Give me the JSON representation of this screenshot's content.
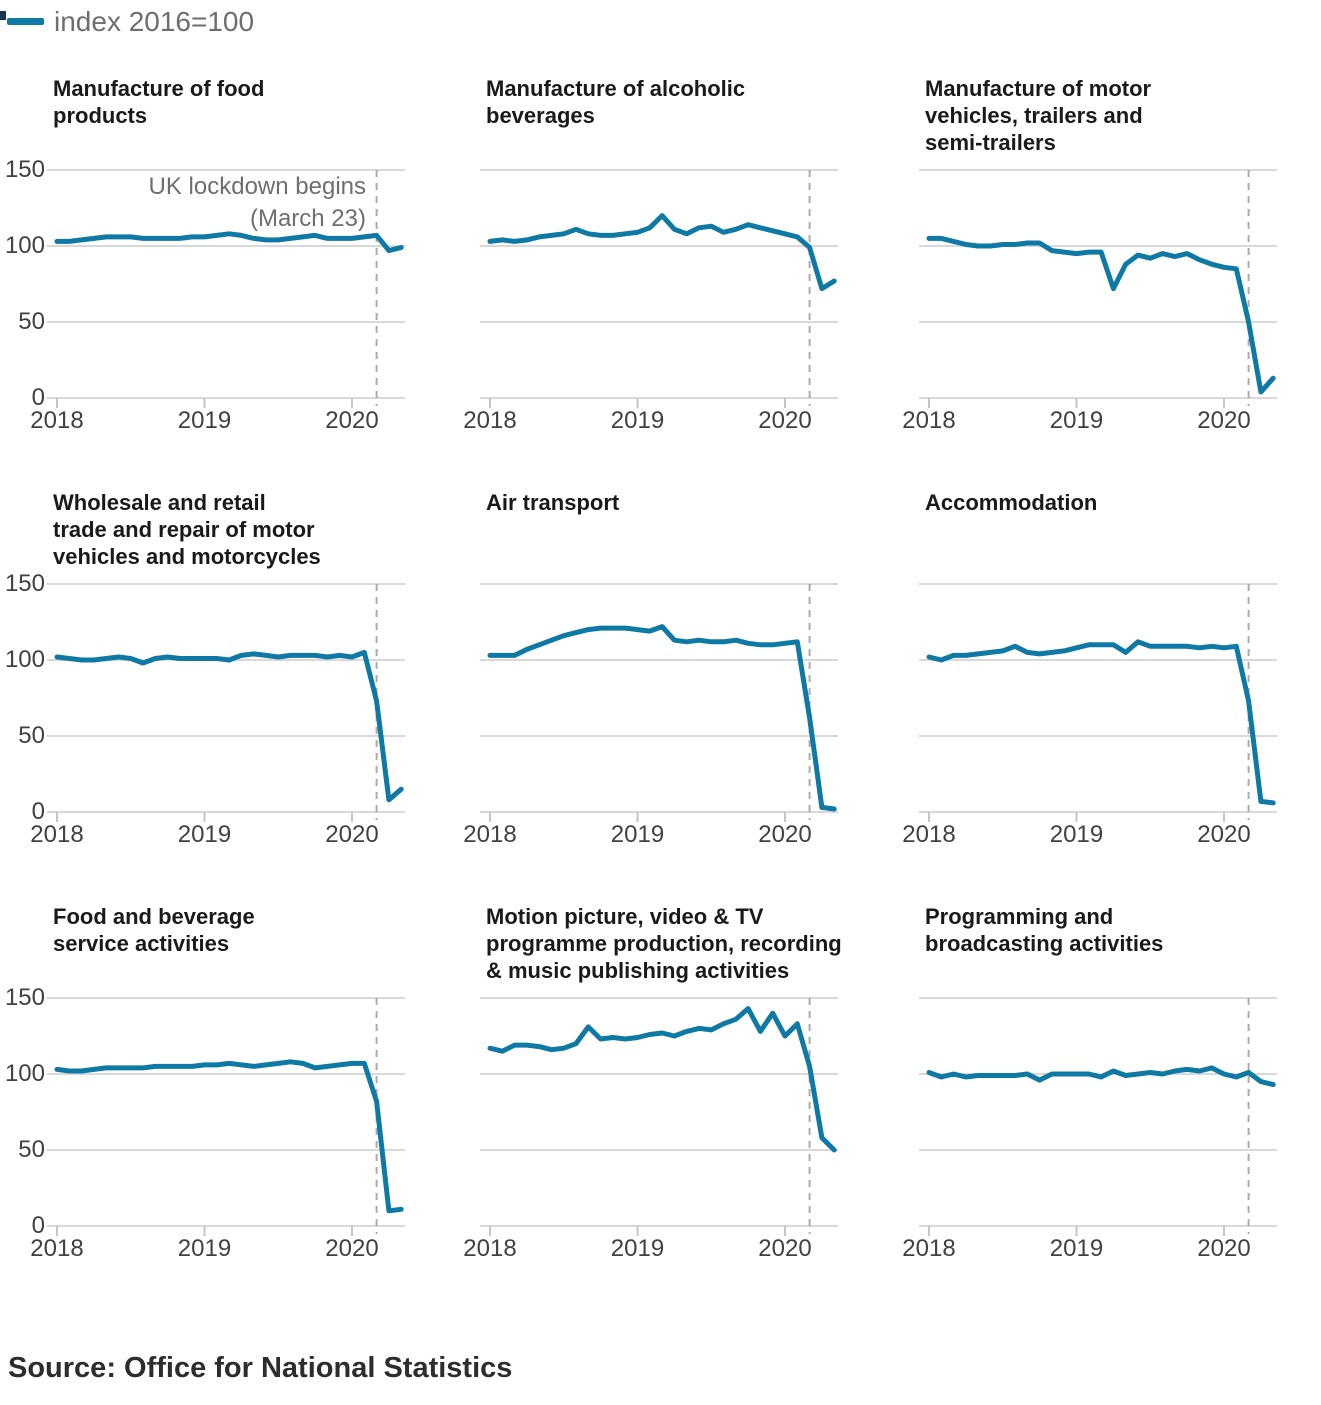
{
  "legend": {
    "label": "index 2016=100",
    "line_color": "#0f79a5",
    "marker_color": "#16364f"
  },
  "source": {
    "text": "Source: Office for National Statistics"
  },
  "chart_data": {
    "type": "line",
    "frequency": "monthly",
    "x_start": "2018-01",
    "x_end": "2020-05",
    "x_tick_labels": [
      "2018",
      "2019",
      "2020"
    ],
    "y_ticks": [
      150,
      100,
      50,
      0
    ],
    "ylim": [
      0,
      150
    ],
    "grid": true,
    "legend_position": "top-left",
    "y_labels_first_column_only": true,
    "line_color": "#0f79a5",
    "grid_color": "#d8d8d8",
    "tick_color": "#c6c6c6",
    "dashed_color": "#ababab",
    "axis_text_color": "#414042",
    "lockdown_line": {
      "label_lines": [
        "UK lockdown begins",
        "(March 23)"
      ],
      "month": "2020-03",
      "month_index": 26,
      "label_on_chart_index": 0
    },
    "charts": [
      {
        "title_lines": [
          "Manufacture of food",
          "products"
        ],
        "values": [
          103,
          103,
          104,
          105,
          106,
          106,
          106,
          105,
          105,
          105,
          105,
          106,
          106,
          107,
          108,
          107,
          105,
          104,
          104,
          105,
          106,
          107,
          105,
          105,
          105,
          106,
          107,
          97,
          99
        ]
      },
      {
        "title_lines": [
          "Manufacture of alcoholic",
          "beverages"
        ],
        "values": [
          103,
          104,
          103,
          104,
          106,
          107,
          108,
          111,
          108,
          107,
          107,
          108,
          109,
          112,
          120,
          111,
          108,
          112,
          113,
          109,
          111,
          114,
          112,
          110,
          108,
          106,
          99,
          72,
          77
        ]
      },
      {
        "title_lines": [
          "Manufacture of motor",
          "vehicles, trailers and",
          "semi-trailers"
        ],
        "values": [
          105,
          105,
          103,
          101,
          100,
          100,
          101,
          101,
          102,
          102,
          97,
          96,
          95,
          96,
          96,
          72,
          88,
          94,
          92,
          95,
          93,
          95,
          91,
          88,
          86,
          85,
          50,
          4,
          13
        ]
      },
      {
        "title_lines": [
          "Wholesale and retail",
          "trade and repair of motor",
          "vehicles and motorcycles"
        ],
        "values": [
          102,
          101,
          100,
          100,
          101,
          102,
          101,
          98,
          101,
          102,
          101,
          101,
          101,
          101,
          100,
          103,
          104,
          103,
          102,
          103,
          103,
          103,
          102,
          103,
          102,
          105,
          73,
          8,
          15
        ]
      },
      {
        "title_lines": [
          "Air transport"
        ],
        "values": [
          103,
          103,
          103,
          107,
          110,
          113,
          116,
          118,
          120,
          121,
          121,
          121,
          120,
          119,
          122,
          113,
          112,
          113,
          112,
          112,
          113,
          111,
          110,
          110,
          111,
          112,
          62,
          3,
          2
        ]
      },
      {
        "title_lines": [
          "Accommodation"
        ],
        "values": [
          102,
          100,
          103,
          103,
          104,
          105,
          106,
          109,
          105,
          104,
          105,
          106,
          108,
          110,
          110,
          110,
          105,
          112,
          109,
          109,
          109,
          109,
          108,
          109,
          108,
          109,
          73,
          7,
          6
        ]
      },
      {
        "title_lines": [
          "Food and beverage",
          "service activities"
        ],
        "values": [
          103,
          102,
          102,
          103,
          104,
          104,
          104,
          104,
          105,
          105,
          105,
          105,
          106,
          106,
          107,
          106,
          105,
          106,
          107,
          108,
          107,
          104,
          105,
          106,
          107,
          107,
          82,
          10,
          11
        ]
      },
      {
        "title_lines": [
          "Motion picture, video & TV",
          "programme production, recording",
          "& music publishing activities"
        ],
        "values": [
          117,
          115,
          119,
          119,
          118,
          116,
          117,
          120,
          131,
          123,
          124,
          123,
          124,
          126,
          127,
          125,
          128,
          130,
          129,
          133,
          136,
          143,
          128,
          140,
          125,
          133,
          105,
          58,
          50
        ]
      },
      {
        "title_lines": [
          "Programming and",
          "broadcasting activities"
        ],
        "values": [
          101,
          98,
          100,
          98,
          99,
          99,
          99,
          99,
          100,
          96,
          100,
          100,
          100,
          100,
          98,
          102,
          99,
          100,
          101,
          100,
          102,
          103,
          102,
          104,
          100,
          98,
          101,
          95,
          93
        ]
      }
    ]
  }
}
